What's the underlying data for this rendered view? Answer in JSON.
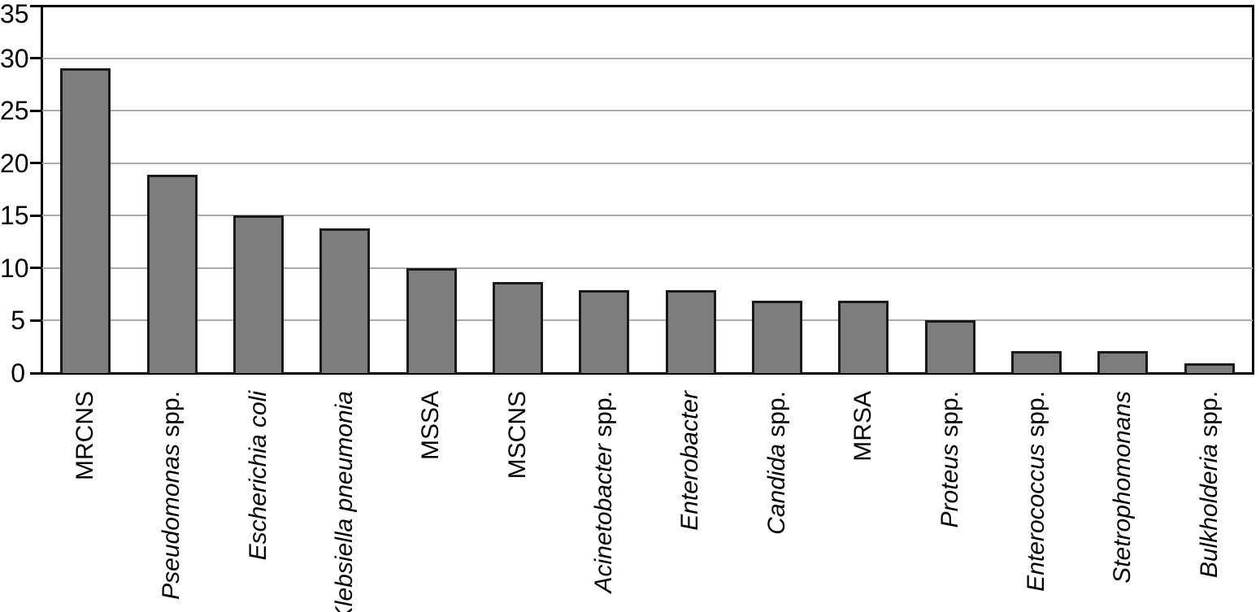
{
  "figure": {
    "background": "#ffffff"
  },
  "chart_data": {
    "type": "bar",
    "title": "",
    "xlabel": "",
    "ylabel": "",
    "ylim": [
      0,
      35
    ],
    "yticks": [
      0,
      5,
      10,
      15,
      20,
      25,
      30,
      35
    ],
    "gridline_values": [
      5,
      10,
      15,
      20,
      25,
      30
    ],
    "grid": true,
    "legend": false,
    "colors": {
      "bar_fill": "#7d7d7d",
      "bar_border": "#1a1a1a",
      "gridline": "#ababab",
      "axis": "#000000",
      "text": "#000000"
    },
    "categories": [
      "MRCNS",
      "Pseudomonas spp.",
      "Escherichia coli",
      "Klebsiella pneumonia",
      "MSSA",
      "MSCNS",
      "Acinetobacter spp.",
      "Enterobacter",
      "Candida spp.",
      "MRSA",
      "Proteus spp.",
      "Enterococcus spp.",
      "Stetrophomonans",
      "Bulkholderia spp."
    ],
    "category_segments": [
      [
        {
          "text": "MRCNS",
          "italic": false
        }
      ],
      [
        {
          "text": "Pseudomonas",
          "italic": true
        },
        {
          "text": " spp.",
          "italic": false
        }
      ],
      [
        {
          "text": "Escherichia coli",
          "italic": true
        }
      ],
      [
        {
          "text": "Klebsiella pneumonia",
          "italic": true
        }
      ],
      [
        {
          "text": "MSSA",
          "italic": false
        }
      ],
      [
        {
          "text": "MSCNS",
          "italic": false
        }
      ],
      [
        {
          "text": "Acinetobacter",
          "italic": true
        },
        {
          "text": " spp.",
          "italic": false
        }
      ],
      [
        {
          "text": "Enterobacter",
          "italic": true
        }
      ],
      [
        {
          "text": "Candida",
          "italic": true
        },
        {
          "text": " spp.",
          "italic": false
        }
      ],
      [
        {
          "text": "MRSA",
          "italic": false
        }
      ],
      [
        {
          "text": "Proteus",
          "italic": true
        },
        {
          "text": " spp.",
          "italic": false
        }
      ],
      [
        {
          "text": "Enterococcus",
          "italic": true
        },
        {
          "text": " spp.",
          "italic": false
        }
      ],
      [
        {
          "text": "Stetrophomonans",
          "italic": true
        }
      ],
      [
        {
          "text": "Bulkholderia",
          "italic": true
        },
        {
          "text": " spp.",
          "italic": false
        }
      ]
    ],
    "values": [
      29,
      18.9,
      15,
      13.8,
      10,
      8.7,
      7.9,
      7.9,
      6.9,
      6.9,
      5,
      2.1,
      2.1,
      0.9
    ]
  }
}
